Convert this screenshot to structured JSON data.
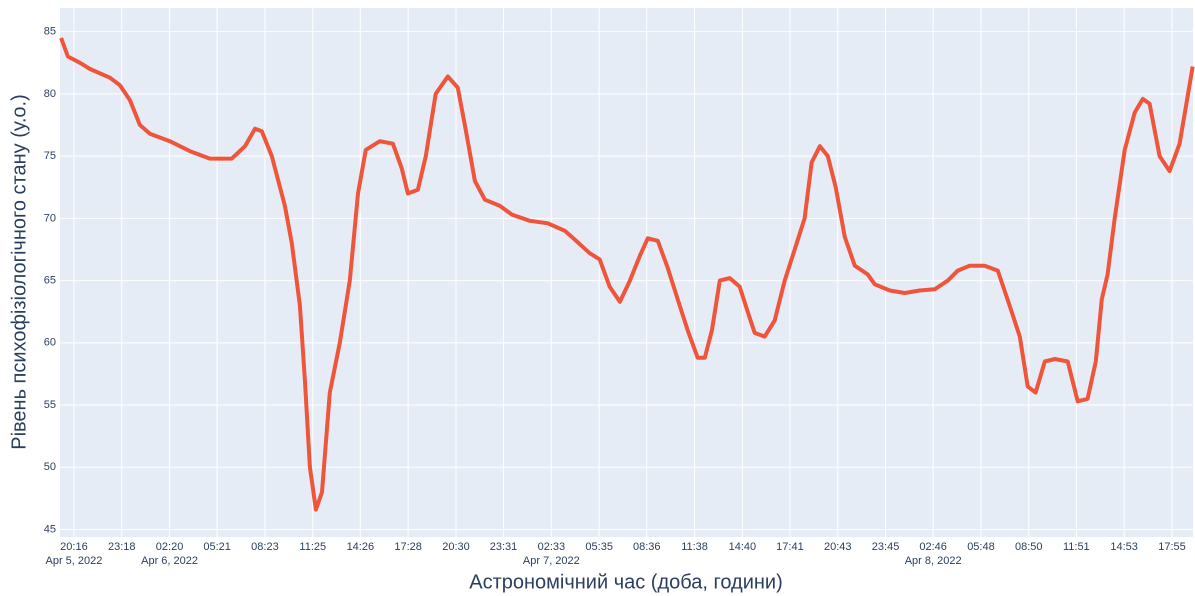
{
  "chart_data": {
    "type": "line",
    "xlabel": "Астрономічний час (доба, години)",
    "ylabel": "Рівень психофізіологічного стану (у.о.)",
    "grid": true,
    "xlim": [
      "2022-04-05 19:23",
      "2022-04-08 19:15"
    ],
    "ylim": [
      44.4,
      86.9
    ],
    "yticks": [
      45,
      50,
      55,
      60,
      65,
      70,
      75,
      80,
      85
    ],
    "xticks": [
      {
        "value": "2022-04-05 20:16",
        "label": "20:16"
      },
      {
        "value": "2022-04-05 23:18",
        "label": "23:18"
      },
      {
        "value": "2022-04-06 02:20",
        "label": "02:20"
      },
      {
        "value": "2022-04-06 05:21",
        "label": "05:21"
      },
      {
        "value": "2022-04-06 08:23",
        "label": "08:23"
      },
      {
        "value": "2022-04-06 11:25",
        "label": "11:25"
      },
      {
        "value": "2022-04-06 14:26",
        "label": "14:26"
      },
      {
        "value": "2022-04-06 17:28",
        "label": "17:28"
      },
      {
        "value": "2022-04-06 20:30",
        "label": "20:30"
      },
      {
        "value": "2022-04-06 23:31",
        "label": "23:31"
      },
      {
        "value": "2022-04-07 02:33",
        "label": "02:33"
      },
      {
        "value": "2022-04-07 05:35",
        "label": "05:35"
      },
      {
        "value": "2022-04-07 08:36",
        "label": "08:36"
      },
      {
        "value": "2022-04-07 11:38",
        "label": "11:38"
      },
      {
        "value": "2022-04-07 14:40",
        "label": "14:40"
      },
      {
        "value": "2022-04-07 17:41",
        "label": "17:41"
      },
      {
        "value": "2022-04-07 20:43",
        "label": "20:43"
      },
      {
        "value": "2022-04-07 23:45",
        "label": "23:45"
      },
      {
        "value": "2022-04-08 02:46",
        "label": "02:46"
      },
      {
        "value": "2022-04-08 05:48",
        "label": "05:48"
      },
      {
        "value": "2022-04-08 08:50",
        "label": "08:50"
      },
      {
        "value": "2022-04-08 11:51",
        "label": "11:51"
      },
      {
        "value": "2022-04-08 14:53",
        "label": "14:53"
      },
      {
        "value": "2022-04-08 17:55",
        "label": "17:55"
      }
    ],
    "x_date_labels": [
      {
        "value": "2022-04-05 20:16",
        "label": "Apr 5, 2022"
      },
      {
        "value": "2022-04-06 02:20",
        "label": "Apr 6, 2022"
      },
      {
        "value": "2022-04-07 02:33",
        "label": "Apr 7, 2022"
      },
      {
        "value": "2022-04-08 02:46",
        "label": "Apr 8, 2022"
      }
    ],
    "x": [
      "2022-04-05 19:27",
      "2022-04-05 19:53",
      "2022-04-05 20:39",
      "2022-04-05 21:17",
      "2022-04-05 22:33",
      "2022-04-05 23:11",
      "2022-04-05 23:49",
      "2022-04-06 00:27",
      "2022-04-06 01:05",
      "2022-04-06 02:21",
      "2022-04-06 03:37",
      "2022-04-06 04:53",
      "2022-04-06 06:17",
      "2022-04-06 07:07",
      "2022-04-06 07:45",
      "2022-04-06 08:11",
      "2022-04-06 08:49",
      "2022-04-06 09:39",
      "2022-04-06 10:05",
      "2022-04-06 10:36",
      "2022-04-06 10:55",
      "2022-04-06 11:14",
      "2022-04-06 11:37",
      "2022-04-06 12:00",
      "2022-04-06 12:30",
      "2022-04-06 13:08",
      "2022-04-06 13:46",
      "2022-04-06 14:17",
      "2022-04-06 14:47",
      "2022-04-06 15:40",
      "2022-04-06 16:30",
      "2022-04-06 17:04",
      "2022-04-06 17:27",
      "2022-04-06 18:05",
      "2022-04-06 18:35",
      "2022-04-06 19:13",
      "2022-04-06 19:59",
      "2022-04-06 20:37",
      "2022-04-06 21:08",
      "2022-04-06 21:42",
      "2022-04-06 22:20",
      "2022-04-06 23:17",
      "2022-04-07 00:03",
      "2022-04-07 01:11",
      "2022-04-07 02:20",
      "2022-04-07 03:24",
      "2022-04-07 04:02",
      "2022-04-07 04:59",
      "2022-04-07 05:37",
      "2022-04-07 06:15",
      "2022-04-07 06:54",
      "2022-04-07 07:32",
      "2022-04-07 08:10",
      "2022-04-07 08:40",
      "2022-04-07 09:18",
      "2022-04-07 09:56",
      "2022-04-07 10:34",
      "2022-04-07 11:12",
      "2022-04-07 11:50",
      "2022-04-07 12:17",
      "2022-04-07 12:44",
      "2022-04-07 13:14",
      "2022-04-07 13:52",
      "2022-04-07 14:30",
      "2022-04-07 15:08",
      "2022-04-07 15:27",
      "2022-04-07 16:05",
      "2022-04-07 16:43",
      "2022-04-07 17:21",
      "2022-04-07 17:59",
      "2022-04-07 18:37",
      "2022-04-07 19:04",
      "2022-04-07 19:35",
      "2022-04-07 20:05",
      "2022-04-07 20:35",
      "2022-04-07 21:10",
      "2022-04-07 21:48",
      "2022-04-07 22:37",
      "2022-04-07 23:04",
      "2022-04-08 00:01",
      "2022-04-08 00:58",
      "2022-04-08 01:55",
      "2022-04-08 02:52",
      "2022-04-08 03:42",
      "2022-04-08 04:20",
      "2022-04-08 05:05",
      "2022-04-08 06:02",
      "2022-04-08 06:52",
      "2022-04-08 07:37",
      "2022-04-08 08:16",
      "2022-04-08 08:46",
      "2022-04-08 09:16",
      "2022-04-08 09:51",
      "2022-04-08 10:29",
      "2022-04-08 11:18",
      "2022-04-08 11:56",
      "2022-04-08 12:34",
      "2022-04-08 13:05",
      "2022-04-08 13:28",
      "2022-04-08 13:50",
      "2022-04-08 14:17",
      "2022-04-08 14:55",
      "2022-04-08 15:33",
      "2022-04-08 16:04",
      "2022-04-08 16:30",
      "2022-04-08 17:08",
      "2022-04-08 17:46",
      "2022-04-08 18:24",
      "2022-04-08 19:14"
    ],
    "series": [
      {
        "color": "#ef553b",
        "values": [
          84.5,
          83,
          82.5,
          82,
          81.3,
          80.7,
          79.5,
          77.5,
          76.8,
          76.2,
          75.4,
          74.8,
          74.8,
          75.8,
          77.2,
          77,
          75,
          71,
          68,
          63,
          57,
          50,
          46.6,
          48,
          56,
          60,
          65,
          72,
          75.5,
          76.2,
          76,
          74,
          72,
          72.3,
          75,
          80,
          81.4,
          80.5,
          77,
          73,
          71.5,
          71,
          70.3,
          69.8,
          69.6,
          69,
          68.3,
          67.2,
          66.7,
          64.5,
          63.3,
          65,
          67,
          68.4,
          68.2,
          66,
          63.5,
          61,
          58.8,
          58.8,
          61,
          65,
          65.2,
          64.5,
          62,
          60.8,
          60.5,
          61.8,
          65,
          67.5,
          70,
          74.5,
          75.8,
          75,
          72.5,
          68.5,
          66.2,
          65.5,
          64.7,
          64.2,
          64,
          64.2,
          64.3,
          65,
          65.8,
          66.2,
          66.2,
          65.8,
          63,
          60.5,
          56.5,
          56,
          58.5,
          58.7,
          58.5,
          55.3,
          55.5,
          58.5,
          63.5,
          65.5,
          70,
          75.5,
          78.5,
          79.6,
          79.2,
          75,
          73.8,
          76,
          82.2
        ]
      }
    ]
  }
}
